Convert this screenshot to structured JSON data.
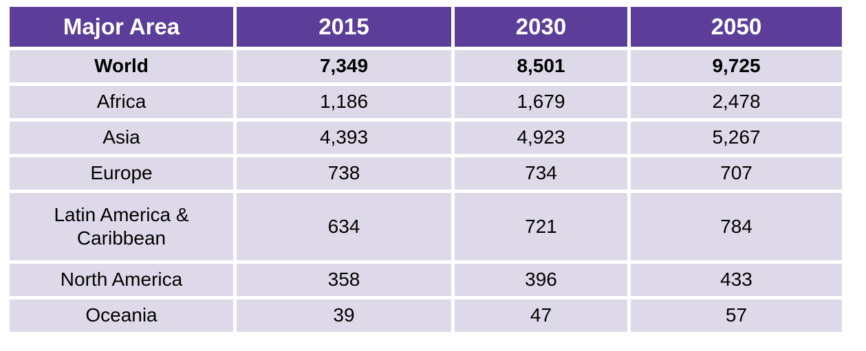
{
  "colors": {
    "page_bg": "#FFFFFF",
    "header_bg": "#5C3D99",
    "header_text": "#FFFFFF",
    "row_bg": "#DED9E8",
    "body_text": "#000000"
  },
  "table": {
    "header": [
      "Major Area",
      "2015",
      "2030",
      "2050"
    ],
    "rows": [
      {
        "label": "World",
        "v2015": "7,349",
        "v2030": "8,501",
        "v2050": "9,725"
      },
      {
        "label": "Africa",
        "v2015": "1,186",
        "v2030": "1,679",
        "v2050": "2,478"
      },
      {
        "label": "Asia",
        "v2015": "4,393",
        "v2030": "4,923",
        "v2050": "5,267"
      },
      {
        "label": "Europe",
        "v2015": "738",
        "v2030": "734",
        "v2050": "707"
      },
      {
        "label": "Latin America & Caribbean",
        "v2015": "634",
        "v2030": "721",
        "v2050": "784"
      },
      {
        "label": "North America",
        "v2015": "358",
        "v2030": "396",
        "v2050": "433"
      },
      {
        "label": "Oceania",
        "v2015": "39",
        "v2030": "47",
        "v2050": "57"
      }
    ]
  },
  "chart_data": {
    "type": "table",
    "title": "",
    "columns": [
      "Major Area",
      "2015",
      "2030",
      "2050"
    ],
    "rows": [
      [
        "World",
        7349,
        8501,
        9725
      ],
      [
        "Africa",
        1186,
        1679,
        2478
      ],
      [
        "Asia",
        4393,
        4923,
        5267
      ],
      [
        "Europe",
        738,
        734,
        707
      ],
      [
        "Latin America & Caribbean",
        634,
        721,
        784
      ],
      [
        "North America",
        358,
        396,
        433
      ],
      [
        "Oceania",
        39,
        47,
        57
      ]
    ],
    "notes": "Population in millions; header row purple, body rows lavender, World row emphasized bold"
  }
}
